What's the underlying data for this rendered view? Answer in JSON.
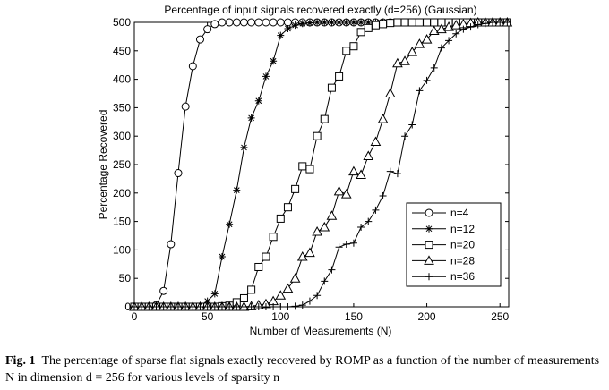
{
  "chart_data": {
    "type": "line",
    "title": "Percentage of input signals recovered exactly (d=256) (Gaussian)",
    "xlabel": "Number of Measurements (N)",
    "ylabel": "Percentage Recovered",
    "xlim": [
      0,
      256
    ],
    "ylim": [
      0,
      500
    ],
    "xticks": [
      0,
      50,
      100,
      150,
      200,
      250
    ],
    "yticks": [
      0,
      50,
      100,
      150,
      200,
      250,
      300,
      350,
      400,
      450,
      500
    ],
    "xtick_labels": [
      "0",
      "50",
      "100",
      "150",
      "200",
      "250"
    ],
    "ytick_labels": [
      "0",
      "50",
      "100",
      "150",
      "200",
      "250",
      "300",
      "350",
      "400",
      "450",
      "500"
    ],
    "grid": false,
    "legend": "lower-right",
    "series": [
      {
        "name": "n=4",
        "marker": "circle",
        "x": [
          0,
          5,
          10,
          15,
          20,
          25,
          30,
          35,
          40,
          45,
          50,
          55,
          60,
          65,
          70,
          75,
          80,
          85,
          90,
          95,
          100,
          105,
          110,
          115,
          120,
          125,
          130,
          135,
          140,
          145,
          150,
          155,
          160,
          165,
          170,
          175,
          180,
          185,
          190,
          195,
          200,
          205,
          210,
          215,
          220,
          225,
          230,
          235,
          240,
          245,
          250,
          255
        ],
        "y": [
          0,
          0,
          0,
          3,
          28,
          110,
          235,
          352,
          423,
          470,
          488,
          497,
          500,
          500,
          500,
          500,
          500,
          500,
          500,
          500,
          500,
          500,
          500,
          500,
          500,
          500,
          500,
          500,
          500,
          500,
          500,
          500,
          500,
          500,
          500,
          500,
          500,
          500,
          500,
          500,
          500,
          500,
          500,
          500,
          500,
          500,
          500,
          500,
          500,
          500,
          500,
          500
        ]
      },
      {
        "name": "n=12",
        "marker": "star",
        "x": [
          0,
          5,
          10,
          15,
          20,
          25,
          30,
          35,
          40,
          45,
          50,
          55,
          60,
          65,
          70,
          75,
          80,
          85,
          90,
          95,
          100,
          105,
          110,
          115,
          120,
          125,
          130,
          135,
          140,
          145,
          150,
          155,
          160,
          165,
          170,
          175,
          180,
          185,
          190,
          195,
          200,
          205,
          210,
          215,
          220,
          225,
          230,
          235,
          240,
          245,
          250,
          255
        ],
        "y": [
          0,
          0,
          0,
          0,
          0,
          0,
          0,
          0,
          0,
          2,
          10,
          23,
          88,
          145,
          205,
          280,
          332,
          362,
          405,
          432,
          477,
          489,
          495,
          498,
          499,
          500,
          500,
          500,
          500,
          500,
          500,
          500,
          500,
          500,
          500,
          500,
          500,
          500,
          500,
          500,
          500,
          500,
          500,
          500,
          500,
          500,
          500,
          500,
          500,
          500,
          500,
          500
        ]
      },
      {
        "name": "n=20",
        "marker": "square",
        "x": [
          0,
          5,
          10,
          15,
          20,
          25,
          30,
          35,
          40,
          45,
          50,
          55,
          60,
          65,
          70,
          75,
          80,
          85,
          90,
          95,
          100,
          105,
          110,
          115,
          120,
          125,
          130,
          135,
          140,
          145,
          150,
          155,
          160,
          165,
          170,
          175,
          180,
          185,
          190,
          195,
          200,
          205,
          210,
          215,
          220,
          225,
          230,
          235,
          240,
          245,
          250,
          255
        ],
        "y": [
          0,
          0,
          0,
          0,
          0,
          0,
          0,
          0,
          0,
          0,
          0,
          0,
          1,
          2,
          8,
          15,
          30,
          70,
          88,
          123,
          155,
          175,
          207,
          247,
          242,
          300,
          330,
          385,
          405,
          450,
          458,
          483,
          490,
          495,
          497,
          499,
          500,
          500,
          500,
          500,
          500,
          500,
          500,
          500,
          500,
          500,
          500,
          500,
          500,
          500,
          500,
          500
        ]
      },
      {
        "name": "n=28",
        "marker": "triangle",
        "x": [
          0,
          5,
          10,
          15,
          20,
          25,
          30,
          35,
          40,
          45,
          50,
          55,
          60,
          65,
          70,
          75,
          80,
          85,
          90,
          95,
          100,
          105,
          110,
          115,
          120,
          125,
          130,
          135,
          140,
          145,
          150,
          155,
          160,
          165,
          170,
          175,
          180,
          185,
          190,
          195,
          200,
          205,
          210,
          215,
          220,
          225,
          230,
          235,
          240,
          245,
          250,
          255
        ],
        "y": [
          0,
          0,
          0,
          0,
          0,
          0,
          0,
          0,
          0,
          0,
          0,
          0,
          0,
          0,
          0,
          0,
          1,
          3,
          5,
          10,
          20,
          32,
          50,
          88,
          95,
          132,
          140,
          160,
          203,
          198,
          238,
          232,
          265,
          290,
          330,
          375,
          428,
          432,
          448,
          462,
          470,
          485,
          488,
          492,
          495,
          497,
          499,
          500,
          500,
          500,
          500,
          500
        ]
      },
      {
        "name": "n=36",
        "marker": "plus",
        "x": [
          0,
          5,
          10,
          15,
          20,
          25,
          30,
          35,
          40,
          45,
          50,
          55,
          60,
          65,
          70,
          75,
          80,
          85,
          90,
          95,
          100,
          105,
          110,
          115,
          120,
          125,
          130,
          135,
          140,
          145,
          150,
          155,
          160,
          165,
          170,
          175,
          180,
          185,
          190,
          195,
          200,
          205,
          210,
          215,
          220,
          225,
          230,
          235,
          240,
          245,
          250,
          255
        ],
        "y": [
          0,
          0,
          0,
          0,
          0,
          0,
          0,
          0,
          0,
          0,
          0,
          0,
          0,
          0,
          0,
          0,
          0,
          0,
          0,
          0,
          0,
          0,
          1,
          3,
          10,
          20,
          45,
          65,
          105,
          110,
          112,
          140,
          150,
          170,
          195,
          238,
          234,
          300,
          320,
          380,
          398,
          420,
          455,
          468,
          480,
          488,
          492,
          496,
          498,
          500,
          500,
          500
        ]
      }
    ]
  },
  "caption": {
    "label": "Fig. 1",
    "text": "The percentage of sparse flat signals exactly recovered by ROMP as a function of the number of measurements N in dimension d = 256 for various levels of sparsity n"
  }
}
